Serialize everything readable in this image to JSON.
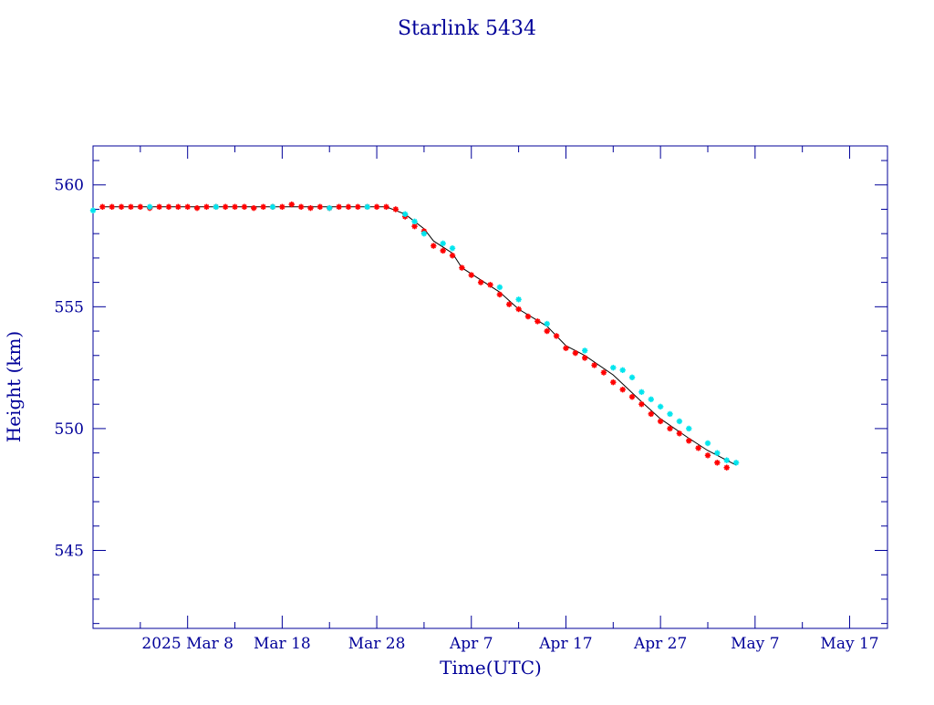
{
  "chart_data": {
    "type": "scatter",
    "title": "Starlink 5434",
    "xlabel": "Time(UTC)",
    "ylabel": "Height (km)",
    "x_axis": {
      "unit": "date",
      "range": [
        "2025-02-26",
        "2025-05-21"
      ],
      "ticks": [
        {
          "date": "2025-02-26",
          "label": ""
        },
        {
          "date": "2025-03-08",
          "label": "2025 Mar  8"
        },
        {
          "date": "2025-03-18",
          "label": "Mar 18"
        },
        {
          "date": "2025-03-28",
          "label": "Mar 28"
        },
        {
          "date": "2025-04-07",
          "label": "Apr  7"
        },
        {
          "date": "2025-04-17",
          "label": "Apr 17"
        },
        {
          "date": "2025-04-27",
          "label": "Apr 27"
        },
        {
          "date": "2025-05-07",
          "label": "May  7"
        },
        {
          "date": "2025-05-17",
          "label": "May 17"
        }
      ]
    },
    "y_axis": {
      "unit": "km",
      "range": [
        541.8,
        561.6
      ],
      "major_ticks": [
        545,
        550,
        555,
        560
      ],
      "minor_step": 1
    },
    "grid": false,
    "colors": {
      "axes": "#000099",
      "text": "#000099",
      "fit_line": "#000000",
      "series_a": "#ff0000",
      "series_b": "#00e5ee"
    },
    "series": [
      {
        "marker": "star",
        "color": "#ff0000",
        "points": [
          {
            "x": "2025-02-27",
            "y": 559.1
          },
          {
            "x": "2025-02-28",
            "y": 559.1
          },
          {
            "x": "2025-03-01",
            "y": 559.1
          },
          {
            "x": "2025-03-02",
            "y": 559.1
          },
          {
            "x": "2025-03-03",
            "y": 559.1
          },
          {
            "x": "2025-03-04",
            "y": 559.05
          },
          {
            "x": "2025-03-05",
            "y": 559.1
          },
          {
            "x": "2025-03-06",
            "y": 559.1
          },
          {
            "x": "2025-03-07",
            "y": 559.1
          },
          {
            "x": "2025-03-08",
            "y": 559.1
          },
          {
            "x": "2025-03-09",
            "y": 559.05
          },
          {
            "x": "2025-03-10",
            "y": 559.1
          },
          {
            "x": "2025-03-11",
            "y": 559.1
          },
          {
            "x": "2025-03-12",
            "y": 559.1
          },
          {
            "x": "2025-03-13",
            "y": 559.1
          },
          {
            "x": "2025-03-14",
            "y": 559.1
          },
          {
            "x": "2025-03-15",
            "y": 559.05
          },
          {
            "x": "2025-03-16",
            "y": 559.1
          },
          {
            "x": "2025-03-17",
            "y": 559.1
          },
          {
            "x": "2025-03-18",
            "y": 559.1
          },
          {
            "x": "2025-03-19",
            "y": 559.2
          },
          {
            "x": "2025-03-20",
            "y": 559.1
          },
          {
            "x": "2025-03-21",
            "y": 559.05
          },
          {
            "x": "2025-03-22",
            "y": 559.1
          },
          {
            "x": "2025-03-23",
            "y": 559.05
          },
          {
            "x": "2025-03-24",
            "y": 559.1
          },
          {
            "x": "2025-03-25",
            "y": 559.1
          },
          {
            "x": "2025-03-26",
            "y": 559.1
          },
          {
            "x": "2025-03-27",
            "y": 559.1
          },
          {
            "x": "2025-03-28",
            "y": 559.1
          },
          {
            "x": "2025-03-29",
            "y": 559.1
          },
          {
            "x": "2025-03-30",
            "y": 559.0
          },
          {
            "x": "2025-03-31",
            "y": 558.7
          },
          {
            "x": "2025-04-01",
            "y": 558.3
          },
          {
            "x": "2025-04-02",
            "y": 558.1
          },
          {
            "x": "2025-04-03",
            "y": 557.5
          },
          {
            "x": "2025-04-04",
            "y": 557.3
          },
          {
            "x": "2025-04-05",
            "y": 557.1
          },
          {
            "x": "2025-04-06",
            "y": 556.6
          },
          {
            "x": "2025-04-07",
            "y": 556.3
          },
          {
            "x": "2025-04-08",
            "y": 556.0
          },
          {
            "x": "2025-04-09",
            "y": 555.9
          },
          {
            "x": "2025-04-10",
            "y": 555.5
          },
          {
            "x": "2025-04-11",
            "y": 555.1
          },
          {
            "x": "2025-04-12",
            "y": 554.9
          },
          {
            "x": "2025-04-13",
            "y": 554.6
          },
          {
            "x": "2025-04-14",
            "y": 554.4
          },
          {
            "x": "2025-04-15",
            "y": 554.0
          },
          {
            "x": "2025-04-16",
            "y": 553.8
          },
          {
            "x": "2025-04-17",
            "y": 553.3
          },
          {
            "x": "2025-04-18",
            "y": 553.1
          },
          {
            "x": "2025-04-19",
            "y": 552.9
          },
          {
            "x": "2025-04-20",
            "y": 552.6
          },
          {
            "x": "2025-04-21",
            "y": 552.3
          },
          {
            "x": "2025-04-22",
            "y": 551.9
          },
          {
            "x": "2025-04-23",
            "y": 551.6
          },
          {
            "x": "2025-04-24",
            "y": 551.3
          },
          {
            "x": "2025-04-25",
            "y": 551.0
          },
          {
            "x": "2025-04-26",
            "y": 550.6
          },
          {
            "x": "2025-04-27",
            "y": 550.3
          },
          {
            "x": "2025-04-28",
            "y": 550.0
          },
          {
            "x": "2025-04-29",
            "y": 549.8
          },
          {
            "x": "2025-04-30",
            "y": 549.5
          },
          {
            "x": "2025-05-01",
            "y": 549.2
          },
          {
            "x": "2025-05-02",
            "y": 548.9
          },
          {
            "x": "2025-05-03",
            "y": 548.6
          },
          {
            "x": "2025-05-04",
            "y": 548.4
          }
        ]
      },
      {
        "marker": "star",
        "color": "#00e5ee",
        "points": [
          {
            "x": "2025-02-26",
            "y": 558.95
          },
          {
            "x": "2025-03-04",
            "y": 559.1
          },
          {
            "x": "2025-03-11",
            "y": 559.1
          },
          {
            "x": "2025-03-17",
            "y": 559.1
          },
          {
            "x": "2025-03-23",
            "y": 559.05
          },
          {
            "x": "2025-03-27",
            "y": 559.1
          },
          {
            "x": "2025-03-31",
            "y": 558.8
          },
          {
            "x": "2025-04-01",
            "y": 558.5
          },
          {
            "x": "2025-04-02",
            "y": 558.0
          },
          {
            "x": "2025-04-04",
            "y": 557.6
          },
          {
            "x": "2025-04-05",
            "y": 557.4
          },
          {
            "x": "2025-04-10",
            "y": 555.8
          },
          {
            "x": "2025-04-12",
            "y": 555.3
          },
          {
            "x": "2025-04-15",
            "y": 554.3
          },
          {
            "x": "2025-04-19",
            "y": 553.2
          },
          {
            "x": "2025-04-22",
            "y": 552.5
          },
          {
            "x": "2025-04-23",
            "y": 552.4
          },
          {
            "x": "2025-04-24",
            "y": 552.1
          },
          {
            "x": "2025-04-25",
            "y": 551.5
          },
          {
            "x": "2025-04-26",
            "y": 551.2
          },
          {
            "x": "2025-04-27",
            "y": 550.9
          },
          {
            "x": "2025-04-28",
            "y": 550.6
          },
          {
            "x": "2025-04-29",
            "y": 550.3
          },
          {
            "x": "2025-04-30",
            "y": 550.0
          },
          {
            "x": "2025-05-02",
            "y": 549.4
          },
          {
            "x": "2025-05-03",
            "y": 549.0
          },
          {
            "x": "2025-05-04",
            "y": 548.7
          },
          {
            "x": "2025-05-05",
            "y": 548.6
          }
        ]
      }
    ],
    "fit_line": {
      "color": "#000000",
      "points": [
        {
          "x": "2025-02-27",
          "y": 559.1
        },
        {
          "x": "2025-03-29",
          "y": 559.1
        },
        {
          "x": "2025-03-31",
          "y": 558.8
        },
        {
          "x": "2025-04-02",
          "y": 558.2
        },
        {
          "x": "2025-04-03",
          "y": 557.7
        },
        {
          "x": "2025-04-05",
          "y": 557.2
        },
        {
          "x": "2025-04-06",
          "y": 556.6
        },
        {
          "x": "2025-04-08",
          "y": 556.1
        },
        {
          "x": "2025-04-10",
          "y": 555.6
        },
        {
          "x": "2025-04-12",
          "y": 554.9
        },
        {
          "x": "2025-04-15",
          "y": 554.2
        },
        {
          "x": "2025-04-17",
          "y": 553.4
        },
        {
          "x": "2025-04-19",
          "y": 553.0
        },
        {
          "x": "2025-04-22",
          "y": 552.2
        },
        {
          "x": "2025-04-25",
          "y": 551.1
        },
        {
          "x": "2025-04-27",
          "y": 550.4
        },
        {
          "x": "2025-04-30",
          "y": 549.6
        },
        {
          "x": "2025-05-02",
          "y": 549.1
        },
        {
          "x": "2025-05-05",
          "y": 548.5
        }
      ]
    }
  }
}
